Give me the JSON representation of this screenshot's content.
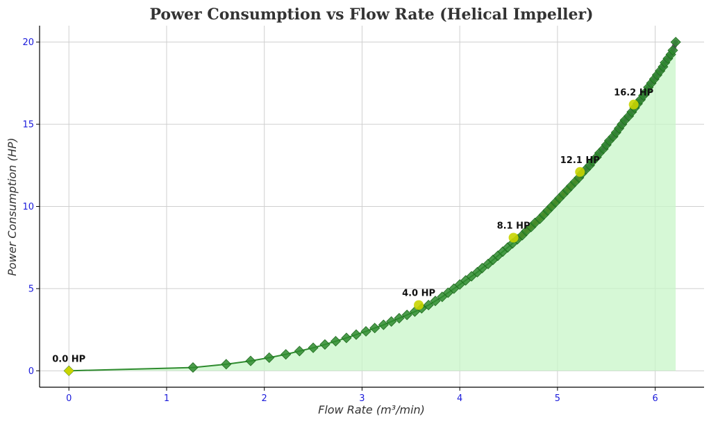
{
  "chart_data": {
    "type": "line",
    "title": "Power Consumption vs Flow Rate (Helical Impeller)",
    "xlabel": "Flow Rate (m³/min)",
    "ylabel": "Power Consumption (HP)",
    "xlim": [
      -0.3,
      6.5
    ],
    "ylim": [
      -1,
      21
    ],
    "xticks": [
      0,
      1,
      2,
      3,
      4,
      5,
      6
    ],
    "yticks": [
      0,
      5,
      10,
      15,
      20
    ],
    "grid": true,
    "colors": {
      "line": "#2e8b2e",
      "marker": "#2e8b2e",
      "fill": "#c8f5c8",
      "highlight": "#c8d400",
      "segment_orange": "#d98a00",
      "segment_purple": "#6a2a7a"
    },
    "series": [
      {
        "marker": "diamond",
        "x": [
          0,
          1.27,
          1.61,
          1.86,
          2.05,
          2.22,
          2.36,
          2.5,
          2.62,
          2.73,
          2.84,
          2.94,
          3.04,
          3.13,
          3.22,
          3.3,
          3.38,
          3.46,
          3.54,
          3.61,
          3.68,
          3.75,
          3.82,
          3.88,
          3.94,
          4.0,
          4.06,
          4.12,
          4.18,
          4.23,
          4.29,
          4.34,
          4.39,
          4.44,
          4.49,
          4.54,
          4.59,
          4.64,
          4.68,
          4.73,
          4.77,
          4.82,
          4.86,
          4.9,
          4.94,
          4.98,
          5.02,
          5.06,
          5.1,
          5.14,
          5.18,
          5.22,
          5.25,
          5.29,
          5.33,
          5.36,
          5.4,
          5.43,
          5.47,
          5.5,
          5.53,
          5.57,
          5.6,
          5.63,
          5.66,
          5.69,
          5.73,
          5.76,
          5.79,
          5.82,
          5.85,
          5.88,
          5.91,
          5.93,
          5.96,
          5.99,
          6.02,
          6.05,
          6.08,
          6.1,
          6.13,
          6.16,
          6.18,
          6.21
        ],
        "y": [
          0,
          0.2,
          0.4,
          0.6,
          0.8,
          1.0,
          1.2,
          1.4,
          1.6,
          1.8,
          2.0,
          2.2,
          2.4,
          2.6,
          2.8,
          3.0,
          3.2,
          3.4,
          3.6,
          3.8,
          4.0,
          4.25,
          4.5,
          4.75,
          5.0,
          5.25,
          5.5,
          5.75,
          6.0,
          6.25,
          6.5,
          6.75,
          7.0,
          7.25,
          7.5,
          7.75,
          8.0,
          8.25,
          8.5,
          8.75,
          9.0,
          9.25,
          9.5,
          9.75,
          10.0,
          10.25,
          10.5,
          10.75,
          11.0,
          11.25,
          11.5,
          11.75,
          12.0,
          12.25,
          12.5,
          12.75,
          13.0,
          13.25,
          13.5,
          13.75,
          14.0,
          14.25,
          14.5,
          14.75,
          15.0,
          15.25,
          15.5,
          15.75,
          16.0,
          16.25,
          16.5,
          16.75,
          17.0,
          17.25,
          17.5,
          17.75,
          18.0,
          18.25,
          18.5,
          18.75,
          19.0,
          19.25,
          19.5,
          20.0
        ]
      }
    ],
    "highlight_segments": [
      {
        "color": "#d98a00",
        "x_start": 4.55,
        "x_end": 5.23
      },
      {
        "color": "#6a2a7a",
        "x_start": 5.23,
        "x_end": 6.21
      }
    ],
    "annotations": [
      {
        "text": "0.0 HP",
        "x": 0.0,
        "y": 0.0
      },
      {
        "text": "4.0 HP",
        "x": 3.58,
        "y": 4.0
      },
      {
        "text": "8.1 HP",
        "x": 4.55,
        "y": 8.1
      },
      {
        "text": "12.1 HP",
        "x": 5.23,
        "y": 12.1
      },
      {
        "text": "16.2 HP",
        "x": 5.78,
        "y": 16.2
      }
    ]
  }
}
